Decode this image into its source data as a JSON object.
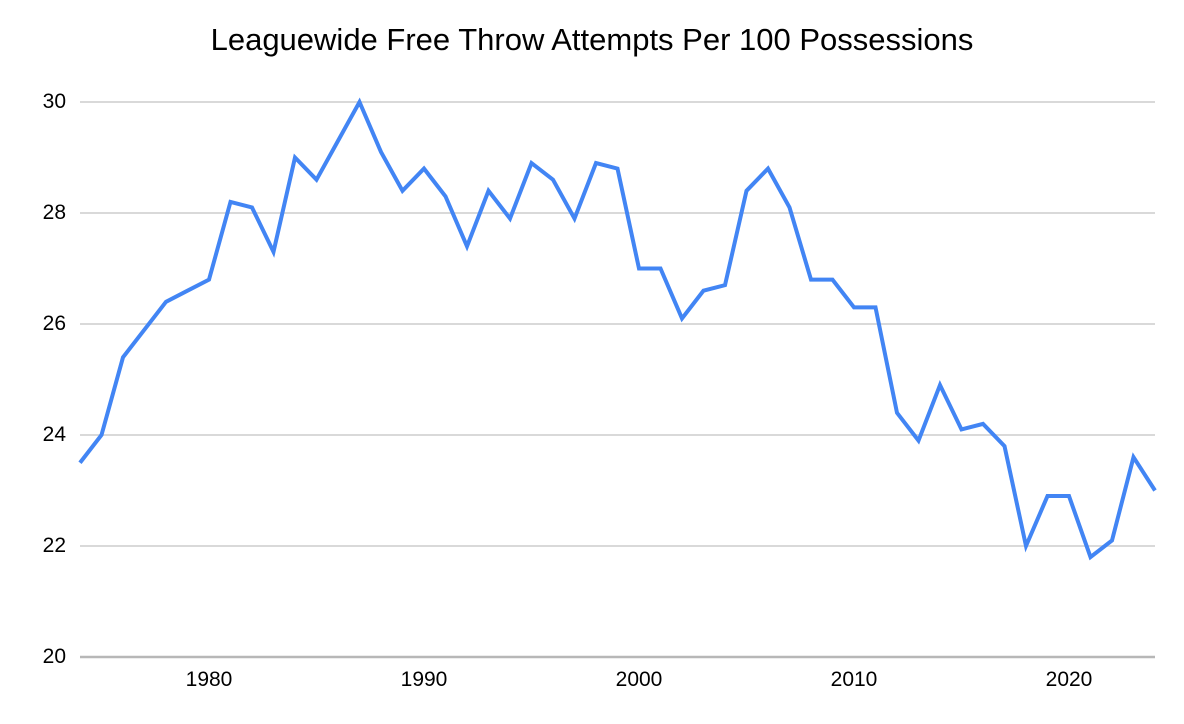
{
  "chart_data": {
    "type": "line",
    "title": "Leaguewide Free Throw Attempts Per 100 Possessions",
    "x": [
      1974,
      1975,
      1976,
      1977,
      1978,
      1979,
      1980,
      1981,
      1982,
      1983,
      1984,
      1985,
      1986,
      1987,
      1988,
      1989,
      1990,
      1991,
      1992,
      1993,
      1994,
      1995,
      1996,
      1997,
      1998,
      1999,
      2000,
      2001,
      2002,
      2003,
      2004,
      2005,
      2006,
      2007,
      2008,
      2009,
      2010,
      2011,
      2012,
      2013,
      2014,
      2015,
      2016,
      2017,
      2018,
      2019,
      2020,
      2021,
      2022,
      2023,
      2024
    ],
    "values": [
      23.5,
      24.0,
      25.4,
      25.9,
      26.4,
      26.6,
      26.8,
      28.2,
      28.1,
      27.3,
      29.0,
      28.6,
      29.3,
      30.0,
      29.1,
      28.4,
      28.8,
      28.3,
      27.4,
      28.4,
      27.9,
      28.9,
      28.6,
      27.9,
      28.9,
      28.8,
      27.0,
      27.0,
      26.1,
      26.6,
      26.7,
      28.4,
      28.8,
      28.1,
      26.8,
      26.8,
      26.3,
      26.3,
      24.4,
      23.9,
      24.9,
      24.1,
      24.2,
      23.8,
      22.0,
      22.9,
      22.9,
      21.8,
      22.1,
      23.6,
      23.0
    ],
    "xlabel": "",
    "ylabel": "",
    "xlim": [
      1974,
      2024
    ],
    "ylim": [
      20,
      30
    ],
    "x_ticks": [
      "1980",
      "1990",
      "2000",
      "2010",
      "2020"
    ],
    "x_tick_values": [
      1980,
      1990,
      2000,
      2010,
      2020
    ],
    "y_ticks": [
      "30",
      "28",
      "26",
      "24",
      "22",
      "20"
    ],
    "y_tick_values": [
      30,
      28,
      26,
      24,
      22,
      20
    ],
    "grid": "horizontal",
    "legend": "none",
    "line_color": "#4285f4",
    "gridline_color": "#d9d9d9",
    "axis_line_color": "#b7b7b7",
    "background_color": "#ffffff",
    "text_color": "#000000"
  }
}
